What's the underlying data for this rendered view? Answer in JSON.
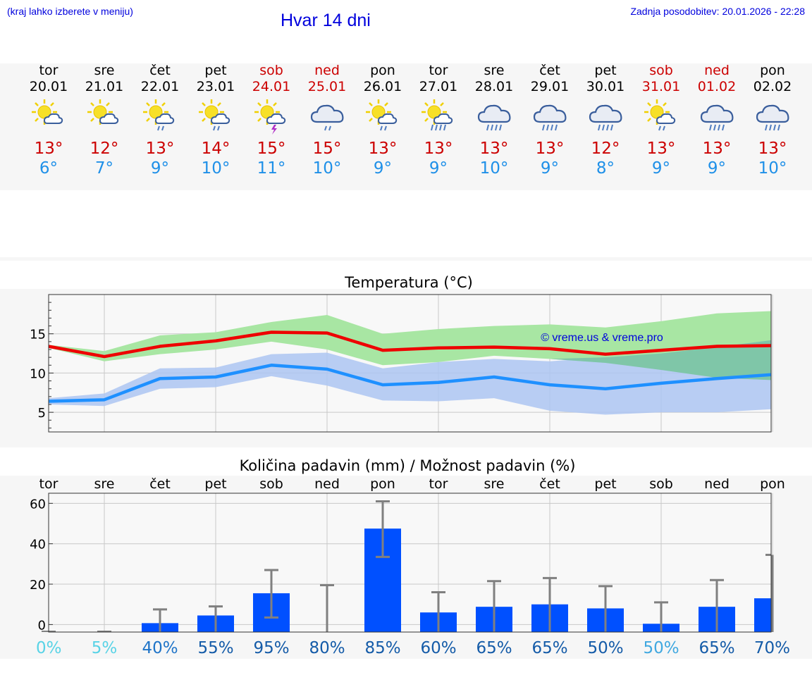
{
  "header": {
    "left_note": "(kraj lahko izberete v meniju)",
    "title": "Hvar 14 dni",
    "updated": "Zadnja posodobitev: 20.01.2026 - 22:28"
  },
  "days": [
    {
      "name": "tor",
      "date": "20.01",
      "weekend": false,
      "icon": "sun-cloud-icon",
      "max": "13°",
      "min": "6°"
    },
    {
      "name": "sre",
      "date": "21.01",
      "weekend": false,
      "icon": "sun-cloud-icon",
      "max": "12°",
      "min": "7°"
    },
    {
      "name": "čet",
      "date": "22.01",
      "weekend": false,
      "icon": "sun-cloud-rain-icon",
      "max": "13°",
      "min": "9°"
    },
    {
      "name": "pet",
      "date": "23.01",
      "weekend": false,
      "icon": "sun-cloud-rain-icon",
      "max": "14°",
      "min": "10°"
    },
    {
      "name": "sob",
      "date": "24.01",
      "weekend": true,
      "icon": "sun-cloud-thunder-icon",
      "max": "15°",
      "min": "11°"
    },
    {
      "name": "ned",
      "date": "25.01",
      "weekend": true,
      "icon": "cloud-rain-icon",
      "max": "15°",
      "min": "10°"
    },
    {
      "name": "pon",
      "date": "26.01",
      "weekend": false,
      "icon": "sun-cloud-rain-icon",
      "max": "13°",
      "min": "9°"
    },
    {
      "name": "tor",
      "date": "27.01",
      "weekend": false,
      "icon": "sun-cloud-heavy-rain-icon",
      "max": "13°",
      "min": "9°"
    },
    {
      "name": "sre",
      "date": "28.01",
      "weekend": false,
      "icon": "cloud-heavy-rain-icon",
      "max": "13°",
      "min": "10°"
    },
    {
      "name": "čet",
      "date": "29.01",
      "weekend": false,
      "icon": "cloud-heavy-rain-icon",
      "max": "13°",
      "min": "9°"
    },
    {
      "name": "pet",
      "date": "30.01",
      "weekend": false,
      "icon": "cloud-heavy-rain-icon",
      "max": "12°",
      "min": "8°"
    },
    {
      "name": "sob",
      "date": "31.01",
      "weekend": true,
      "icon": "sun-cloud-rain-icon",
      "max": "13°",
      "min": "9°"
    },
    {
      "name": "ned",
      "date": "01.02",
      "weekend": true,
      "icon": "cloud-heavy-rain-icon",
      "max": "13°",
      "min": "9°"
    },
    {
      "name": "pon",
      "date": "02.02",
      "weekend": false,
      "icon": "cloud-heavy-rain-icon",
      "max": "13°",
      "min": "10°"
    }
  ],
  "colors": {
    "max_line": "#ee0000",
    "min_line": "#1e90ff",
    "max_band": "#a8e6a3",
    "min_band": "#adc6f2",
    "overlap_band": "#7fc6a8",
    "bar": "#0050ff",
    "error": "#808080",
    "title": "#0000dd"
  },
  "chart_data": [
    {
      "type": "line",
      "title": "Temperatura (°C)",
      "watermark": "© vreme.us & vreme.pro",
      "ylim": [
        2.5,
        20
      ],
      "yticks": [
        5,
        10,
        15
      ],
      "x": [
        0,
        1,
        2,
        3,
        4,
        5,
        6,
        7,
        8,
        9,
        10,
        11,
        12,
        13
      ],
      "series": [
        {
          "name": "max",
          "values": [
            13.4,
            12.1,
            13.4,
            14.1,
            15.2,
            15.1,
            12.9,
            13.2,
            13.3,
            13.1,
            12.4,
            12.9,
            13.4,
            13.5
          ]
        },
        {
          "name": "min",
          "values": [
            6.4,
            6.6,
            9.3,
            9.5,
            11.0,
            10.5,
            8.5,
            8.8,
            9.5,
            8.5,
            8.0,
            8.7,
            9.3,
            9.8
          ]
        }
      ],
      "bands": [
        {
          "name": "max",
          "upper": [
            13.6,
            12.8,
            14.8,
            15.2,
            16.5,
            17.4,
            15.0,
            15.6,
            16.0,
            16.2,
            15.8,
            16.6,
            17.6,
            17.9
          ],
          "lower": [
            13.2,
            11.5,
            12.4,
            13.0,
            14.0,
            13.0,
            11.0,
            11.4,
            12.2,
            11.8,
            11.3,
            10.4,
            9.4,
            9.1
          ]
        },
        {
          "name": "min",
          "upper": [
            6.8,
            7.4,
            10.6,
            10.7,
            12.4,
            12.6,
            10.6,
            11.4,
            11.8,
            11.5,
            12.0,
            12.5,
            13.3,
            14.2
          ],
          "lower": [
            6.0,
            5.8,
            8.0,
            8.2,
            9.6,
            8.4,
            6.5,
            6.4,
            6.8,
            5.2,
            4.7,
            5.0,
            5.0,
            5.4
          ]
        }
      ]
    },
    {
      "type": "bar",
      "title": "Količina padavin (mm) / Možnost padavin (%)",
      "ylim": [
        -3.7,
        65
      ],
      "yticks": [
        0,
        20,
        40,
        60
      ],
      "categories": [
        "tor",
        "sre",
        "čet",
        "pet",
        "sob",
        "ned",
        "pon",
        "tor",
        "sre",
        "čet",
        "pet",
        "sob",
        "ned",
        "pon"
      ],
      "values": [
        0,
        0,
        0.7,
        4.5,
        15.5,
        0,
        47.5,
        6,
        8.8,
        10,
        8,
        0.4,
        8.8,
        13
      ],
      "err_low": [
        0,
        0,
        0,
        0,
        3.5,
        0,
        33.5,
        0,
        0,
        0,
        0,
        0,
        0,
        0
      ],
      "err_high": [
        0,
        0,
        7.5,
        9,
        27,
        19.5,
        61,
        16,
        21.5,
        23,
        19,
        11,
        22,
        34.5
      ],
      "chance": [
        {
          "label": "0%",
          "color": "#58d3e6"
        },
        {
          "label": "5%",
          "color": "#58d3e6"
        },
        {
          "label": "40%",
          "color": "#1f74c8"
        },
        {
          "label": "55%",
          "color": "#145ba8"
        },
        {
          "label": "95%",
          "color": "#145ba8"
        },
        {
          "label": "80%",
          "color": "#145ba8"
        },
        {
          "label": "85%",
          "color": "#145ba8"
        },
        {
          "label": "60%",
          "color": "#145ba8"
        },
        {
          "label": "65%",
          "color": "#145ba8"
        },
        {
          "label": "65%",
          "color": "#145ba8"
        },
        {
          "label": "50%",
          "color": "#145ba8"
        },
        {
          "label": "50%",
          "color": "#40a8e0"
        },
        {
          "label": "65%",
          "color": "#145ba8"
        },
        {
          "label": "70%",
          "color": "#145ba8"
        }
      ]
    }
  ]
}
